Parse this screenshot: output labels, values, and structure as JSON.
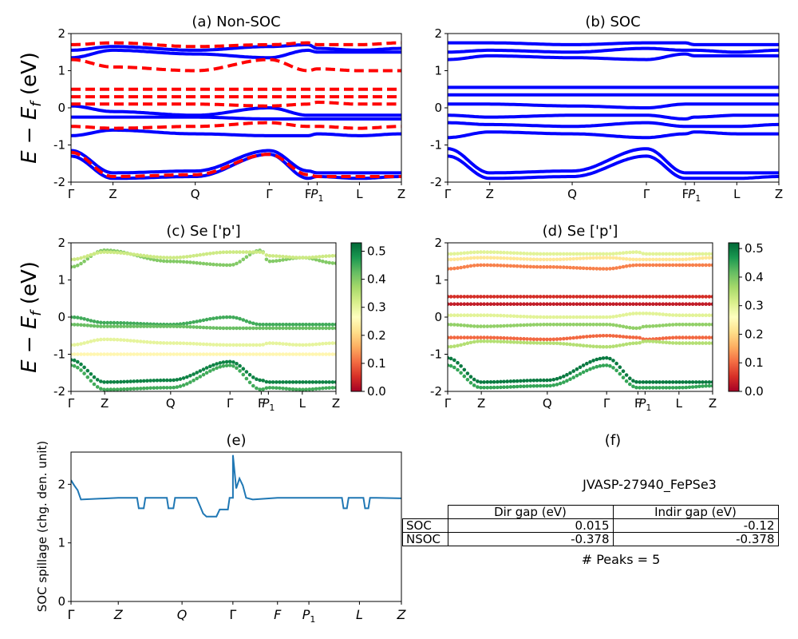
{
  "figure": {
    "ylabel_main": "E − E",
    "ylabel_sub": "f",
    "ylabel_unit": " (eV)"
  },
  "kpath_labels": [
    "Γ",
    "Z",
    "Q",
    "Γ",
    "F",
    "P",
    "L",
    "Z"
  ],
  "kpath_p_subscript": "1",
  "panels": {
    "a": {
      "title": "(a) Non-SOC"
    },
    "b": {
      "title": "(b) SOC"
    },
    "c": {
      "title": "(c)  Se ['p']"
    },
    "d": {
      "title": "(d) Se ['p']"
    },
    "e": {
      "title": "(e)",
      "ylabel": "SOC spillage (chg. den. unit)"
    },
    "f": {
      "title": "(f)",
      "material": "JVASP-27940_FePSe3",
      "peaks_text": "# Peaks = 5"
    }
  },
  "table": {
    "headers": [
      "Dir gap (eV)",
      "Indir gap (eV)"
    ],
    "rows": [
      {
        "label": "SOC",
        "dir": "0.015",
        "indir": "-0.12"
      },
      {
        "label": "NSOC",
        "dir": "-0.378",
        "indir": "-0.378"
      }
    ]
  },
  "colors": {
    "soc": "#0000ff",
    "nonsoc": "#ff0000",
    "spillage": "#1f77b4"
  },
  "chart_data": [
    {
      "type": "line",
      "title": "(a) Non-SOC",
      "ylabel": "E − E_f (eV)",
      "ylim": [
        -2,
        2
      ],
      "x_ticks": [
        "Γ",
        "Z",
        "Q",
        "Γ",
        "F",
        "P1",
        "L",
        "Z"
      ],
      "series": [
        {
          "style": "solid blue",
          "values_at_ticks": [
            1.35,
            1.55,
            1.45,
            1.35,
            1.55,
            1.5,
            1.5,
            1.5
          ]
        },
        {
          "style": "solid blue",
          "values_at_ticks": [
            1.55,
            1.65,
            1.55,
            1.65,
            1.7,
            1.6,
            1.55,
            1.6
          ]
        },
        {
          "style": "solid blue",
          "values_at_ticks": [
            0.05,
            -0.1,
            -0.2,
            0.0,
            -0.2,
            -0.2,
            -0.2,
            -0.2
          ]
        },
        {
          "style": "solid blue",
          "values_at_ticks": [
            -0.25,
            -0.25,
            -0.25,
            -0.3,
            -0.3,
            -0.3,
            -0.3,
            -0.3
          ]
        },
        {
          "style": "solid blue",
          "values_at_ticks": [
            -0.75,
            -0.6,
            -0.7,
            -0.75,
            -0.75,
            -0.7,
            -0.75,
            -0.7
          ]
        },
        {
          "style": "solid blue",
          "values_at_ticks": [
            -1.15,
            -1.75,
            -1.7,
            -1.15,
            -1.7,
            -1.75,
            -1.75,
            -1.75
          ]
        },
        {
          "style": "solid blue",
          "values_at_ticks": [
            -1.3,
            -1.9,
            -1.85,
            -1.25,
            -1.9,
            -1.85,
            -1.9,
            -1.85
          ]
        },
        {
          "style": "dashed red",
          "values_at_ticks": [
            1.7,
            1.75,
            1.65,
            1.7,
            1.75,
            1.7,
            1.7,
            1.75
          ]
        },
        {
          "style": "dashed red",
          "values_at_ticks": [
            1.3,
            1.1,
            1.0,
            1.3,
            1.0,
            1.05,
            1.0,
            1.0
          ]
        },
        {
          "style": "dashed red",
          "values_at_ticks": [
            0.5,
            0.5,
            0.5,
            0.5,
            0.5,
            0.5,
            0.5,
            0.5
          ]
        },
        {
          "style": "dashed red",
          "values_at_ticks": [
            0.3,
            0.3,
            0.3,
            0.3,
            0.3,
            0.3,
            0.3,
            0.3
          ]
        },
        {
          "style": "dashed red",
          "values_at_ticks": [
            0.1,
            0.1,
            0.1,
            0.05,
            0.1,
            0.15,
            0.1,
            0.1
          ]
        },
        {
          "style": "dashed red",
          "values_at_ticks": [
            -0.5,
            -0.55,
            -0.5,
            -0.4,
            -0.5,
            -0.5,
            -0.55,
            -0.5
          ]
        },
        {
          "style": "dashed red",
          "values_at_ticks": [
            -1.2,
            -1.85,
            -1.8,
            -1.25,
            -1.8,
            -1.85,
            -1.85,
            -1.85
          ]
        }
      ]
    },
    {
      "type": "line",
      "title": "(b) SOC",
      "ylim": [
        -2,
        2
      ],
      "x_ticks": [
        "Γ",
        "Z",
        "Q",
        "Γ",
        "F",
        "P1",
        "L",
        "Z"
      ],
      "series": [
        {
          "style": "solid blue",
          "values_at_ticks": [
            1.3,
            1.4,
            1.35,
            1.3,
            1.45,
            1.4,
            1.4,
            1.4
          ]
        },
        {
          "style": "solid blue",
          "values_at_ticks": [
            1.5,
            1.55,
            1.5,
            1.6,
            1.55,
            1.55,
            1.5,
            1.55
          ]
        },
        {
          "style": "solid blue",
          "values_at_ticks": [
            1.75,
            1.75,
            1.7,
            1.75,
            1.75,
            1.7,
            1.7,
            1.7
          ]
        },
        {
          "style": "solid blue",
          "values_at_ticks": [
            0.55,
            0.55,
            0.55,
            0.55,
            0.55,
            0.55,
            0.55,
            0.55
          ]
        },
        {
          "style": "solid blue",
          "values_at_ticks": [
            0.35,
            0.35,
            0.35,
            0.35,
            0.35,
            0.35,
            0.35,
            0.35
          ]
        },
        {
          "style": "solid blue",
          "values_at_ticks": [
            0.1,
            0.1,
            0.05,
            0.0,
            0.1,
            0.1,
            0.1,
            0.1
          ]
        },
        {
          "style": "solid blue",
          "values_at_ticks": [
            -0.2,
            -0.25,
            -0.2,
            -0.2,
            -0.3,
            -0.25,
            -0.2,
            -0.2
          ]
        },
        {
          "style": "solid blue",
          "values_at_ticks": [
            -0.4,
            -0.45,
            -0.5,
            -0.4,
            -0.5,
            -0.5,
            -0.5,
            -0.45
          ]
        },
        {
          "style": "solid blue",
          "values_at_ticks": [
            -0.8,
            -0.65,
            -0.7,
            -0.8,
            -0.7,
            -0.65,
            -0.7,
            -0.7
          ]
        },
        {
          "style": "solid blue",
          "values_at_ticks": [
            -1.1,
            -1.75,
            -1.7,
            -1.1,
            -1.75,
            -1.75,
            -1.75,
            -1.75
          ]
        },
        {
          "style": "solid blue",
          "values_at_ticks": [
            -1.3,
            -1.9,
            -1.85,
            -1.3,
            -1.9,
            -1.9,
            -1.9,
            -1.85
          ]
        }
      ]
    },
    {
      "type": "scatter",
      "title": "(c)  Se ['p']",
      "ylim": [
        -2,
        2
      ],
      "colorbar": {
        "range": [
          0,
          0.53
        ],
        "ticks": [
          0.0,
          0.1,
          0.2,
          0.3,
          0.4,
          0.5
        ],
        "colormap": "RdYlGn"
      },
      "x_ticks": [
        "Γ",
        "Z",
        "Q",
        "Γ",
        "F",
        "P1",
        "L",
        "Z"
      ],
      "bands": [
        {
          "weight": 0.4,
          "values_at_ticks": [
            1.35,
            1.8,
            1.5,
            1.4,
            1.8,
            1.5,
            1.6,
            1.45
          ]
        },
        {
          "weight": 0.33,
          "values_at_ticks": [
            1.55,
            1.75,
            1.6,
            1.75,
            1.75,
            1.65,
            1.6,
            1.65
          ]
        },
        {
          "weight": 0.45,
          "values_at_ticks": [
            0.0,
            -0.15,
            -0.2,
            0.0,
            -0.2,
            -0.2,
            -0.2,
            -0.2
          ]
        },
        {
          "weight": 0.42,
          "values_at_ticks": [
            -0.2,
            -0.25,
            -0.25,
            -0.3,
            -0.3,
            -0.3,
            -0.3,
            -0.3
          ]
        },
        {
          "weight": 0.3,
          "values_at_ticks": [
            -0.75,
            -0.6,
            -0.7,
            -0.75,
            -0.75,
            -0.7,
            -0.75,
            -0.7
          ]
        },
        {
          "weight": 0.25,
          "values_at_ticks": [
            -1.0,
            -1.0,
            -1.0,
            -1.0,
            -1.0,
            -1.0,
            -1.0,
            -1.0
          ]
        },
        {
          "weight": 0.5,
          "values_at_ticks": [
            -1.15,
            -1.75,
            -1.7,
            -1.2,
            -1.7,
            -1.75,
            -1.75,
            -1.75
          ]
        },
        {
          "weight": 0.45,
          "values_at_ticks": [
            -1.3,
            -1.95,
            -1.9,
            -1.3,
            -1.95,
            -1.9,
            -1.95,
            -1.9
          ]
        }
      ]
    },
    {
      "type": "scatter",
      "title": "(d) Se ['p']",
      "ylim": [
        -2,
        2
      ],
      "colorbar": {
        "range": [
          0,
          0.52
        ],
        "ticks": [
          0.0,
          0.1,
          0.2,
          0.3,
          0.4,
          0.5
        ],
        "colormap": "RdYlGn"
      },
      "x_ticks": [
        "Γ",
        "Z",
        "Q",
        "Γ",
        "F",
        "P1",
        "L",
        "Z"
      ],
      "bands": [
        {
          "weight": 0.3,
          "values_at_ticks": [
            1.7,
            1.75,
            1.7,
            1.7,
            1.75,
            1.7,
            1.7,
            1.7
          ]
        },
        {
          "weight": 0.22,
          "values_at_ticks": [
            1.55,
            1.6,
            1.55,
            1.6,
            1.55,
            1.55,
            1.55,
            1.6
          ]
        },
        {
          "weight": 0.12,
          "values_at_ticks": [
            1.3,
            1.4,
            1.35,
            1.3,
            1.4,
            1.4,
            1.4,
            1.4
          ]
        },
        {
          "weight": 0.05,
          "values_at_ticks": [
            0.55,
            0.55,
            0.55,
            0.55,
            0.55,
            0.55,
            0.55,
            0.55
          ]
        },
        {
          "weight": 0.03,
          "values_at_ticks": [
            0.35,
            0.35,
            0.35,
            0.35,
            0.35,
            0.35,
            0.35,
            0.35
          ]
        },
        {
          "weight": 0.3,
          "values_at_ticks": [
            0.05,
            0.05,
            0.0,
            0.0,
            0.1,
            0.1,
            0.05,
            0.05
          ]
        },
        {
          "weight": 0.38,
          "values_at_ticks": [
            -0.2,
            -0.25,
            -0.2,
            -0.2,
            -0.3,
            -0.25,
            -0.2,
            -0.2
          ]
        },
        {
          "weight": 0.1,
          "values_at_ticks": [
            -0.55,
            -0.55,
            -0.6,
            -0.5,
            -0.55,
            -0.6,
            -0.55,
            -0.55
          ]
        },
        {
          "weight": 0.35,
          "values_at_ticks": [
            -0.8,
            -0.65,
            -0.7,
            -0.8,
            -0.7,
            -0.65,
            -0.7,
            -0.7
          ]
        },
        {
          "weight": 0.5,
          "values_at_ticks": [
            -1.1,
            -1.75,
            -1.7,
            -1.1,
            -1.75,
            -1.75,
            -1.75,
            -1.75
          ]
        },
        {
          "weight": 0.45,
          "values_at_ticks": [
            -1.3,
            -1.9,
            -1.85,
            -1.3,
            -1.9,
            -1.9,
            -1.9,
            -1.85
          ]
        }
      ]
    },
    {
      "type": "line",
      "title": "(e)",
      "ylabel": "SOC spillage (chg. den. unit)",
      "ylim": [
        0,
        2.55
      ],
      "yticks": [
        0,
        1,
        2
      ],
      "x_ticks": [
        "Γ",
        "Z",
        "Q",
        "Γ",
        "F",
        "P1",
        "L",
        "Z"
      ],
      "x_tick_positions": [
        0,
        0.143,
        0.336,
        0.49,
        0.625,
        0.72,
        0.873,
        1.0
      ],
      "series": [
        {
          "name": "spillage",
          "x": [
            0,
            0.01,
            0.02,
            0.03,
            0.143,
            0.2,
            0.205,
            0.22,
            0.225,
            0.24,
            0.29,
            0.295,
            0.31,
            0.315,
            0.33,
            0.355,
            0.38,
            0.4,
            0.41,
            0.42,
            0.425,
            0.44,
            0.45,
            0.475,
            0.48,
            0.49,
            0.49,
            0.5,
            0.51,
            0.52,
            0.53,
            0.55,
            0.625,
            0.72,
            0.82,
            0.825,
            0.835,
            0.84,
            0.86,
            0.885,
            0.89,
            0.9,
            0.905,
            0.925,
            1.0
          ],
          "values": [
            2.07,
            1.98,
            1.9,
            1.74,
            1.77,
            1.77,
            1.59,
            1.59,
            1.77,
            1.77,
            1.77,
            1.59,
            1.59,
            1.77,
            1.77,
            1.77,
            1.77,
            1.5,
            1.45,
            1.45,
            1.45,
            1.45,
            1.57,
            1.57,
            1.77,
            1.77,
            2.5,
            1.93,
            2.1,
            1.98,
            1.77,
            1.74,
            1.77,
            1.77,
            1.77,
            1.59,
            1.59,
            1.77,
            1.77,
            1.77,
            1.59,
            1.59,
            1.77,
            1.77,
            1.76
          ]
        }
      ]
    }
  ]
}
